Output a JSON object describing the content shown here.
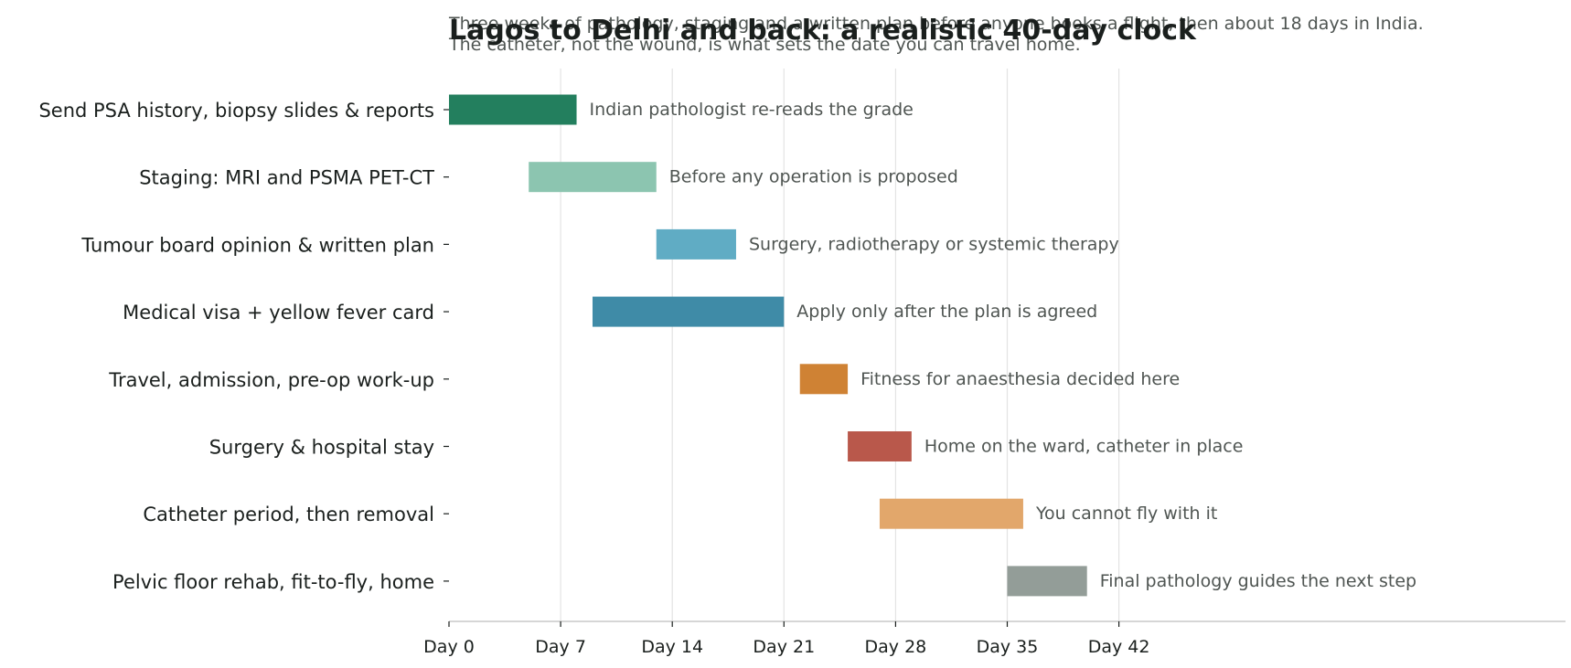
{
  "chart_data": {
    "type": "bar",
    "orientation": "horizontal",
    "subtype": "gantt",
    "title": "Lagos to Delhi and back: a realistic 40-day clock",
    "subtitle": [
      "Three weeks of pathology, staging and a written plan before anyone books a flight, then about 18 days in India.",
      "The catheter, not the wound, is what sets the date you can travel home."
    ],
    "xlabel": "",
    "ylabel": "",
    "xlim": [
      0,
      70
    ],
    "x_ticks": [
      0,
      7,
      14,
      21,
      28,
      35,
      42
    ],
    "x_tick_labels": [
      "Day 0",
      "Day 7",
      "Day 14",
      "Day 21",
      "Day 28",
      "Day 35",
      "Day 42"
    ],
    "grid": "vertical",
    "tasks": [
      {
        "label": "Send PSA history, biopsy slides & reports",
        "start": 0,
        "end": 8,
        "color": "#237f5e",
        "annotation": "Indian pathologist re-reads the grade"
      },
      {
        "label": "Staging: MRI and PSMA PET-CT",
        "start": 5,
        "end": 13,
        "color": "#8cc5b0",
        "annotation": "Before any operation is proposed"
      },
      {
        "label": "Tumour board opinion & written plan",
        "start": 13,
        "end": 18,
        "color": "#60acc4",
        "annotation": "Surgery, radiotherapy or systemic therapy"
      },
      {
        "label": "Medical visa + yellow fever card",
        "start": 9,
        "end": 21,
        "color": "#3f8ba7",
        "annotation": "Apply only after the plan is agreed"
      },
      {
        "label": "Travel, admission, pre-op work-up",
        "start": 22,
        "end": 25,
        "color": "#cf8234",
        "annotation": "Fitness for anaesthesia decided here"
      },
      {
        "label": "Surgery & hospital stay",
        "start": 25,
        "end": 29,
        "color": "#b9584b",
        "annotation": "Home on the ward, catheter in place"
      },
      {
        "label": "Catheter period, then removal",
        "start": 27,
        "end": 36,
        "color": "#e2a76b",
        "annotation": "You cannot fly with it"
      },
      {
        "label": "Pelvic floor rehab, fit-to-fly, home",
        "start": 35,
        "end": 40,
        "color": "#939d98",
        "annotation": "Final pathology guides the next step"
      }
    ],
    "colors": {
      "grid": "#e3e3e3",
      "axis": "#bdbdbd",
      "text": "#1a1f1d",
      "muted_text": "#4f5552"
    }
  }
}
